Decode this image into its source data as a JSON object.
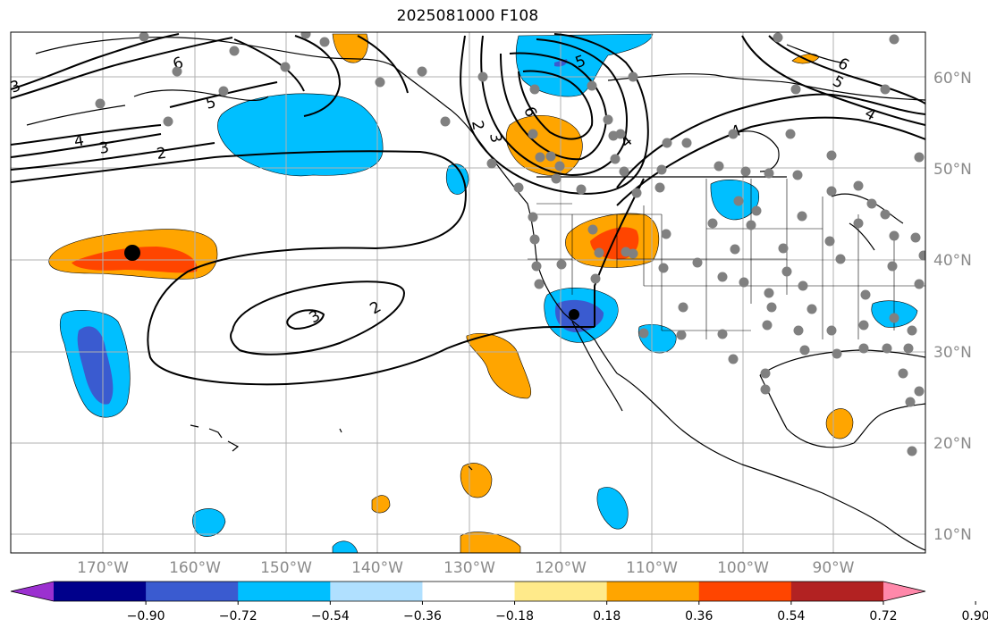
{
  "title": "2025081000 F108",
  "lon_labels": [
    "170°W",
    "160°W",
    "150°W",
    "140°W",
    "130°W",
    "120°W",
    "110°W",
    "100°W",
    "90°W"
  ],
  "lat_labels": [
    "60°N",
    "50°N",
    "40°N",
    "30°N",
    "20°N",
    "10°N"
  ],
  "contour_labels": [
    "6",
    "5",
    "4",
    "3",
    "2",
    "2",
    "3",
    "3",
    "2",
    "6",
    "5",
    "4",
    "3",
    "6",
    "5",
    "4",
    "4"
  ],
  "colorbar": {
    "ticks": [
      "−0.90",
      "−0.72",
      "−0.54",
      "−0.36",
      "−0.18",
      "0.18",
      "0.36",
      "0.54",
      "0.72",
      "0.90"
    ],
    "colors": [
      "#9b30d0",
      "#00008b",
      "#3a5bd0",
      "#00bfff",
      "#b0e0ff",
      "#ffffff",
      "#ffea8a",
      "#ffa500",
      "#ff4500",
      "#b22222",
      "#ff88aa"
    ]
  },
  "markers": {
    "station_color": "#808080",
    "center_color": "#000000"
  }
}
